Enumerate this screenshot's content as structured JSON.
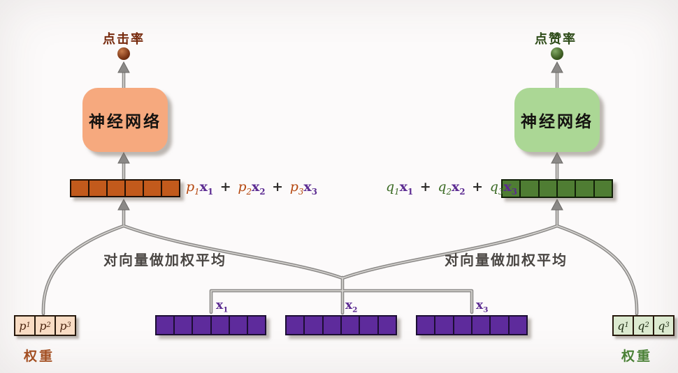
{
  "background": "#fcfafa",
  "note_text": "对向量做加权平均",
  "left": {
    "output_label": "点击率",
    "output_color": "#76290c",
    "box_label": "神经网络",
    "box_fill": "#f6a97e",
    "vector_cells": 6,
    "vector_fill": "#c25a1c",
    "vector_border": "#201004",
    "formula": {
      "coef": "p",
      "coef_color": "#b5470f",
      "x": "x",
      "x_color": "#5b2a91",
      "subs": [
        "1",
        "2",
        "3"
      ],
      "plus": "+"
    },
    "weights": {
      "cells": [
        {
          "base": "p",
          "sub": "1"
        },
        {
          "base": "p",
          "sub": "2"
        },
        {
          "base": "p",
          "sub": "3"
        }
      ],
      "fill": "#f9dcc4",
      "text_color": "#4a2410",
      "label": "权重",
      "label_color": "#a34f22"
    }
  },
  "right": {
    "output_label": "点赞率",
    "output_color": "#2c4a17",
    "box_label": "神经网络",
    "box_fill": "#abd795",
    "vector_cells": 6,
    "vector_fill": "#4f7d33",
    "vector_border": "#122008",
    "formula": {
      "coef": "q",
      "coef_color": "#3c6b25",
      "x": "x",
      "x_color": "#5b2a91",
      "subs": [
        "1",
        "2",
        "3"
      ],
      "plus": "+"
    },
    "weights": {
      "cells": [
        {
          "base": "q",
          "sub": "1"
        },
        {
          "base": "q",
          "sub": "2"
        },
        {
          "base": "q",
          "sub": "3"
        }
      ],
      "fill": "#dcead0",
      "text_color": "#1d2b12",
      "label": "权重",
      "label_color": "#4a8136"
    }
  },
  "inputs": {
    "labels": [
      {
        "base": "x",
        "sub": "1"
      },
      {
        "base": "x",
        "sub": "2"
      },
      {
        "base": "x",
        "sub": "3"
      }
    ],
    "label_color": "#5b2a91",
    "vector_cells": 6,
    "vector_fill": "#5e2b9c",
    "vector_border": "#1c0e33"
  }
}
